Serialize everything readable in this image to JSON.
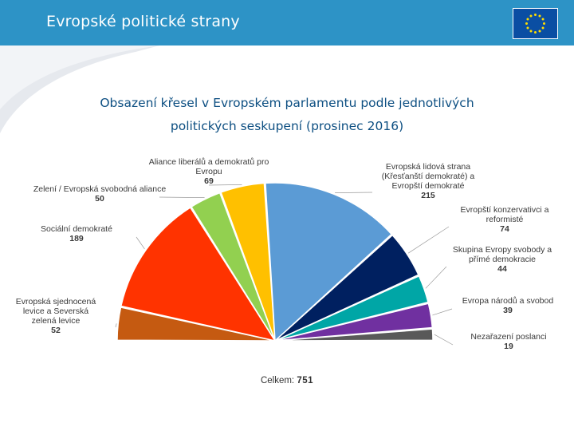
{
  "header": {
    "title": "Evropské politické strany"
  },
  "colors": {
    "header": "#2d93c6",
    "title": "#0d4f82"
  },
  "chart_data": {
    "type": "pie",
    "title_line1": "Obsazení křesel v Evropském parlamentu podle jednotlivých",
    "title_line2": "politických seskupení (prosinec 2016)",
    "total_label": "Celkem:",
    "total_value": "751",
    "slices": [
      {
        "name": "Evropská sjednocená levice a Severská zelená levice",
        "label_lines": [
          "Evropská sjednocená",
          "levice a Severská",
          "zelená levice"
        ],
        "value": 52,
        "color": "#c55a11",
        "side": "left"
      },
      {
        "name": "Sociální demokraté",
        "label_lines": [
          "Sociální demokraté"
        ],
        "value": 189,
        "color": "#ff3300",
        "side": "left"
      },
      {
        "name": "Zelení / Evropská svobodná aliance",
        "label_lines": [
          "Zelení / Evropská svobodná aliance"
        ],
        "value": 50,
        "color": "#92d050",
        "side": "left"
      },
      {
        "name": "Aliance liberálů a demokratů pro Evropu",
        "label_lines": [
          "Aliance liberálů a demokratů pro",
          "Evropu"
        ],
        "value": 69,
        "color": "#ffc000",
        "side": "top"
      },
      {
        "name": "Evropská lidová strana (Křesťanští demokraté) a Evropští demokraté",
        "label_lines": [
          "Evropská lidová strana",
          "(Křesťanští demokraté) a",
          "Evropští demokraté"
        ],
        "value": 215,
        "color": "#5b9bd5",
        "side": "right"
      },
      {
        "name": "Evropští konzervativci a reformisté",
        "label_lines": [
          "Evropští konzervativci a",
          "reformisté"
        ],
        "value": 74,
        "color": "#002060",
        "side": "right"
      },
      {
        "name": "Skupina Evropy svobody a přímé demokracie",
        "label_lines": [
          "Skupina Evropy svobody a",
          "přímé demokracie"
        ],
        "value": 44,
        "color": "#00a6a6",
        "side": "right"
      },
      {
        "name": "Evropa národů a svobod",
        "label_lines": [
          "Evropa národů a svobod"
        ],
        "value": 39,
        "color": "#7030a0",
        "side": "right"
      },
      {
        "name": "Nezařazení poslanci",
        "label_lines": [
          "Nezařazení poslanci"
        ],
        "value": 19,
        "color": "#595959",
        "side": "right"
      }
    ]
  }
}
